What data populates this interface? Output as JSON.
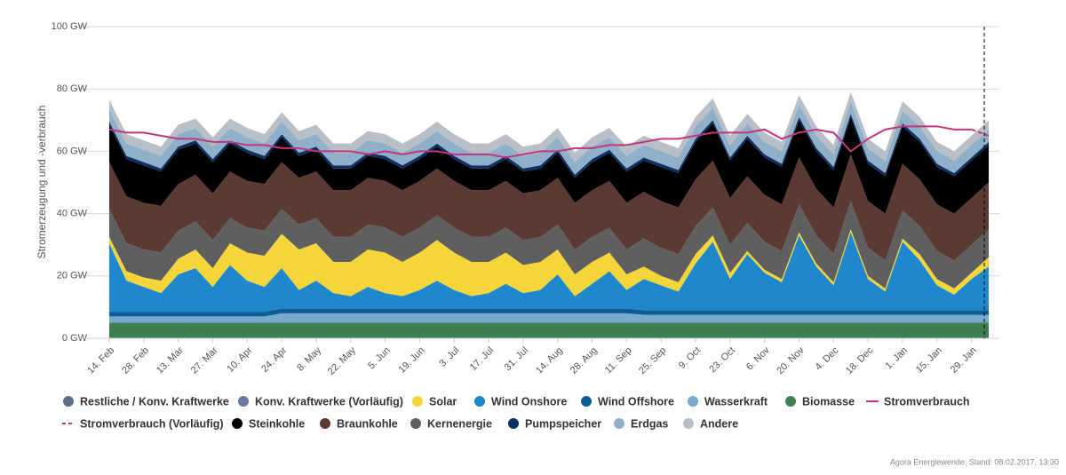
{
  "chart_data": {
    "type": "area",
    "y_label": "Stromerzeugung und -verbrauch",
    "source": "Agora Energiewende; Stand: 08.02.2017, 13:30",
    "categories": [
      "14. Feb",
      null,
      "28. Feb",
      null,
      "13. Mar",
      null,
      "27. Mar",
      null,
      "10. Apr",
      null,
      "24. Apr",
      null,
      "8. May",
      null,
      "22. May",
      null,
      "5. Jun",
      null,
      "19. Jun",
      null,
      "3. Jul",
      null,
      "17. Jul",
      null,
      "31. Jul",
      null,
      "14. Aug",
      null,
      "28. Aug",
      null,
      "11. Sep",
      null,
      "25. Sep",
      null,
      "9. Oct",
      null,
      "23. Oct",
      null,
      "6. Nov",
      null,
      "20. Nov",
      null,
      "4. Dec",
      null,
      "18. Dec",
      null,
      "1. Jan",
      null,
      "15. Jan",
      null,
      "29. Jan",
      null
    ],
    "ylim": [
      0,
      100
    ],
    "yticks": [
      {
        "value": 0,
        "label": "0 GW"
      },
      {
        "value": 20,
        "label": "20 GW"
      },
      {
        "value": 40,
        "label": "40 GW"
      },
      {
        "value": 60,
        "label": "60 GW"
      },
      {
        "value": 80,
        "label": "80 GW"
      },
      {
        "value": 100,
        "label": "100 GW"
      }
    ],
    "grid": true,
    "series": [
      {
        "name": "Restliche / Konv. Kraftwerke",
        "color": "#5a6f8a",
        "type": "area",
        "values": [
          null,
          null,
          null,
          null,
          null,
          null,
          null,
          null,
          null,
          null,
          null,
          null,
          null,
          null,
          null,
          null,
          null,
          null,
          null,
          null,
          null,
          null,
          null,
          null,
          null,
          null,
          null,
          null,
          null,
          null,
          null,
          null,
          null,
          null,
          null,
          null,
          null,
          null,
          null,
          null,
          null,
          null,
          null,
          null,
          null,
          null,
          null,
          null,
          null,
          null,
          null,
          null
        ]
      },
      {
        "name": "Konv. Kraftwerke (Vorläufig)",
        "color": "#6a7aa0",
        "type": "area",
        "values": [
          null,
          null,
          null,
          null,
          null,
          null,
          null,
          null,
          null,
          null,
          null,
          null,
          null,
          null,
          null,
          null,
          null,
          null,
          null,
          null,
          null,
          null,
          null,
          null,
          null,
          null,
          null,
          null,
          null,
          null,
          null,
          null,
          null,
          null,
          null,
          null,
          null,
          null,
          null,
          null,
          null,
          null,
          null,
          null,
          null,
          null,
          null,
          null,
          null,
          null,
          null,
          null
        ]
      },
      {
        "name": "Solar",
        "color": "#f5d63a",
        "type": "area",
        "values": [
          2,
          3,
          3,
          4,
          5,
          6,
          6,
          7,
          9,
          10,
          11,
          13,
          12,
          10,
          11,
          12,
          13,
          11,
          12,
          13,
          12,
          11,
          10,
          10,
          9,
          9,
          8,
          7,
          7,
          6,
          5,
          4,
          3,
          3,
          3,
          2,
          2,
          1,
          1,
          1,
          1,
          1,
          1,
          1,
          1,
          1,
          1,
          2,
          2,
          2,
          2,
          3
        ]
      },
      {
        "name": "Wind Onshore",
        "color": "#1f88cc",
        "type": "area",
        "values": [
          22,
          10,
          8,
          6,
          12,
          14,
          8,
          15,
          10,
          8,
          13,
          6,
          9,
          5,
          4,
          7,
          5,
          4,
          6,
          9,
          6,
          4,
          5,
          8,
          5,
          6,
          11,
          4,
          8,
          12,
          6,
          10,
          8,
          6,
          15,
          22,
          10,
          18,
          12,
          9,
          24,
          14,
          8,
          25,
          10,
          6,
          22,
          16,
          8,
          5,
          10,
          14
        ]
      },
      {
        "name": "Wind Offshore",
        "color": "#0c5c96",
        "type": "area",
        "values": [
          1.5,
          1.5,
          1.5,
          1.5,
          1.5,
          1.5,
          1.5,
          1.5,
          1.5,
          1.5,
          1.5,
          1.5,
          1.5,
          1.5,
          1.5,
          1.5,
          1.5,
          1.5,
          1.5,
          1.5,
          1.5,
          1.5,
          1.5,
          1.5,
          1.5,
          1.5,
          1.5,
          1.5,
          1.5,
          1.5,
          1.5,
          1.5,
          1.5,
          1.5,
          1.5,
          1.5,
          1.5,
          1.5,
          1.5,
          1.5,
          1.5,
          1.5,
          1.5,
          1.5,
          1.5,
          1.5,
          1.5,
          1.5,
          1.5,
          1.5,
          1.5,
          1.5
        ]
      },
      {
        "name": "Wasserkraft",
        "color": "#79a9cc",
        "type": "area",
        "values": [
          2,
          2,
          2,
          2,
          2,
          2,
          2,
          2,
          2,
          2,
          3,
          3,
          3,
          3,
          3,
          3,
          3,
          3,
          3,
          3,
          3,
          3,
          3,
          3,
          3,
          3,
          3,
          3,
          3,
          3,
          3,
          2.5,
          2.5,
          2.5,
          2.5,
          2.5,
          2.5,
          2.5,
          2.5,
          2.5,
          2.5,
          2.5,
          2.5,
          2.5,
          2.5,
          2.5,
          2.5,
          2.5,
          2.5,
          2.5,
          2.5,
          2.5
        ]
      },
      {
        "name": "Biomasse",
        "color": "#3f7f4f",
        "type": "area",
        "values": [
          5,
          5,
          5,
          5,
          5,
          5,
          5,
          5,
          5,
          5,
          5,
          5,
          5,
          5,
          5,
          5,
          5,
          5,
          5,
          5,
          5,
          5,
          5,
          5,
          5,
          5,
          5,
          5,
          5,
          5,
          5,
          5,
          5,
          5,
          5,
          5,
          5,
          5,
          5,
          5,
          5,
          5,
          5,
          5,
          5,
          5,
          5,
          5,
          5,
          5,
          5,
          5
        ]
      },
      {
        "name": "Stromverbrauch",
        "color": "#c2357f",
        "type": "line",
        "values": [
          67,
          66,
          66,
          65,
          64,
          64,
          63,
          63,
          62,
          62,
          61,
          61,
          60,
          60,
          60,
          59,
          60,
          59,
          60,
          60,
          59,
          59,
          59,
          58,
          59,
          60,
          60,
          61,
          61,
          62,
          62,
          63,
          64,
          64,
          65,
          66,
          66,
          66,
          67,
          64,
          66,
          67,
          66,
          60,
          64,
          67,
          68,
          68,
          68,
          67,
          67,
          null
        ]
      },
      {
        "name": "Stromverbrauch (Vorläufig)",
        "color": "#c2357f",
        "type": "line",
        "dash": true,
        "values": [
          null,
          null,
          null,
          null,
          null,
          null,
          null,
          null,
          null,
          null,
          null,
          null,
          null,
          null,
          null,
          null,
          null,
          null,
          null,
          null,
          null,
          null,
          null,
          null,
          null,
          null,
          null,
          null,
          null,
          null,
          null,
          null,
          null,
          null,
          null,
          null,
          null,
          null,
          null,
          null,
          null,
          null,
          null,
          null,
          null,
          null,
          null,
          null,
          null,
          null,
          67,
          65
        ]
      },
      {
        "name": "Steinkohle",
        "color": "#000000",
        "type": "area",
        "values": [
          12,
          12,
          12,
          11,
          11,
          10,
          10,
          9,
          9,
          8,
          8,
          7,
          7,
          7,
          7,
          7,
          7,
          7,
          7,
          7,
          7,
          7,
          7,
          7,
          7,
          7,
          8,
          8,
          9,
          9,
          10,
          10,
          11,
          11,
          12,
          12,
          12,
          12,
          12,
          12,
          12,
          12,
          12,
          12,
          12,
          12,
          12,
          12,
          12,
          12,
          12,
          12
        ]
      },
      {
        "name": "Braunkohle",
        "color": "#5a3a33",
        "type": "area",
        "values": [
          15,
          15,
          15,
          15,
          15,
          15,
          15,
          15,
          15,
          15,
          15,
          15,
          15,
          15,
          15,
          15,
          15,
          15,
          15,
          15,
          15,
          15,
          15,
          15,
          15,
          15,
          15,
          15,
          15,
          15,
          15,
          15,
          15,
          15,
          15,
          15,
          15,
          15,
          15,
          15,
          15,
          15,
          15,
          15,
          15,
          15,
          15,
          15,
          15,
          15,
          15,
          15
        ]
      },
      {
        "name": "Kernenergie",
        "color": "#5f5f5f",
        "type": "area",
        "values": [
          9,
          9,
          9,
          9,
          9,
          9,
          9,
          8,
          8,
          8,
          8,
          8,
          8,
          8,
          8,
          8,
          8,
          8,
          8,
          8,
          8,
          8,
          8,
          8,
          8,
          8,
          8,
          8,
          8,
          8,
          8,
          9,
          9,
          9,
          9,
          9,
          9,
          9,
          9,
          9,
          9,
          9,
          9,
          9,
          9,
          9,
          9,
          9,
          9,
          9,
          9,
          9
        ]
      },
      {
        "name": "Pumpspeicher",
        "color": "#0c2f66",
        "type": "area",
        "values": [
          1,
          1,
          1,
          1,
          1,
          1,
          1,
          1,
          1,
          1,
          1,
          1,
          1,
          1,
          1,
          1,
          1,
          1,
          1,
          1,
          1,
          1,
          1,
          1,
          1,
          1,
          1,
          1,
          1,
          1,
          1,
          1,
          1,
          1,
          1,
          1,
          1,
          1,
          1,
          1,
          1,
          1,
          1,
          1,
          1,
          1,
          1,
          1,
          1,
          1,
          1,
          1
        ]
      },
      {
        "name": "Erdgas",
        "color": "#8fb0c8",
        "type": "area",
        "values": [
          4,
          4,
          4,
          4,
          4,
          4,
          4,
          4,
          4,
          4,
          4,
          4,
          4,
          4,
          4,
          4,
          4,
          4,
          4,
          4,
          4,
          4,
          4,
          4,
          4,
          4,
          4,
          4,
          4,
          4,
          4,
          4,
          4,
          4,
          4,
          4,
          4,
          4,
          4,
          4,
          4,
          4,
          4,
          4,
          4,
          4,
          4,
          4,
          4,
          4,
          4,
          4
        ]
      },
      {
        "name": "Andere",
        "color": "#b9bfc6",
        "type": "area",
        "values": [
          3,
          3,
          3,
          3,
          3,
          3,
          3,
          3,
          3,
          3,
          3,
          3,
          3,
          3,
          3,
          3,
          3,
          3,
          3,
          3,
          3,
          3,
          3,
          3,
          3,
          3,
          3,
          3,
          3,
          3,
          3,
          3,
          3,
          3,
          3,
          3,
          3,
          3,
          3,
          3,
          3,
          3,
          3,
          3,
          3,
          3,
          3,
          3,
          3,
          3,
          3,
          3
        ]
      }
    ]
  }
}
